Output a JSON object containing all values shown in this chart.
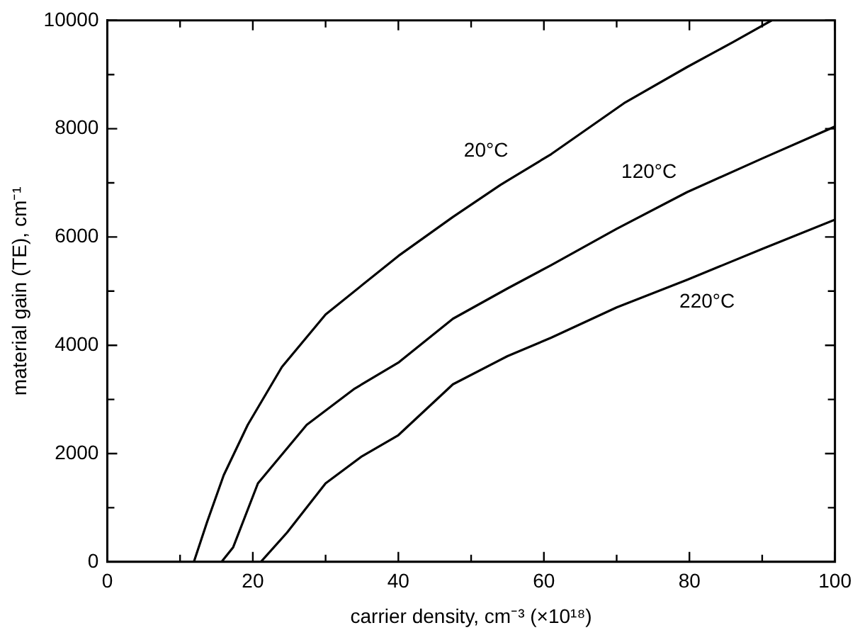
{
  "chart_data": {
    "type": "line",
    "xlabel": "carrier density, cm⁻³ (×10¹⁸)",
    "ylabel": "material gain (TE), cm⁻¹",
    "xlim": [
      0,
      100
    ],
    "ylim": [
      0,
      10000
    ],
    "xticks": [
      0,
      {
        "value": 10,
        "label": null
      },
      20,
      {
        "value": 30,
        "label": null
      },
      40,
      {
        "value": 50,
        "label": null
      },
      60,
      {
        "value": 70,
        "label": null
      },
      80,
      {
        "value": 90,
        "label": null
      },
      100
    ],
    "yticks": [
      0,
      {
        "value": 1000,
        "label": null
      },
      2000,
      {
        "value": 3000,
        "label": null
      },
      4000,
      {
        "value": 5000,
        "label": null
      },
      6000,
      {
        "value": 7000,
        "label": null
      },
      8000,
      {
        "value": 9000,
        "label": null
      },
      10000
    ],
    "grid": false,
    "legend": false,
    "marker": "none",
    "line_style": "solid",
    "series": [
      {
        "name": "20°C",
        "color": "#000000",
        "x": [
          11.9,
          13.7,
          16,
          19.3,
          24,
          30,
          40,
          47.5,
          54,
          61,
          71,
          79.7,
          86,
          91.3
        ],
        "values": [
          0,
          730,
          1600,
          2530,
          3600,
          4570,
          5650,
          6370,
          6960,
          7530,
          8470,
          9140,
          9600,
          10000
        ]
      },
      {
        "name": "120°C",
        "color": "#000000",
        "x": [
          15.7,
          17.3,
          20.7,
          27.4,
          34,
          40,
          47.5,
          55,
          61,
          70,
          79.7,
          90,
          100
        ],
        "values": [
          0,
          270,
          1450,
          2530,
          3200,
          3680,
          4490,
          5050,
          5480,
          6150,
          6830,
          7450,
          8040
        ]
      },
      {
        "name": "220°C",
        "color": "#000000",
        "x": [
          21.1,
          24.7,
          30,
          35,
          40,
          47.5,
          55,
          61,
          70,
          79.7,
          90,
          100
        ],
        "values": [
          0,
          540,
          1450,
          1950,
          2340,
          3280,
          3800,
          4140,
          4700,
          5210,
          5780,
          6320
        ]
      }
    ]
  }
}
